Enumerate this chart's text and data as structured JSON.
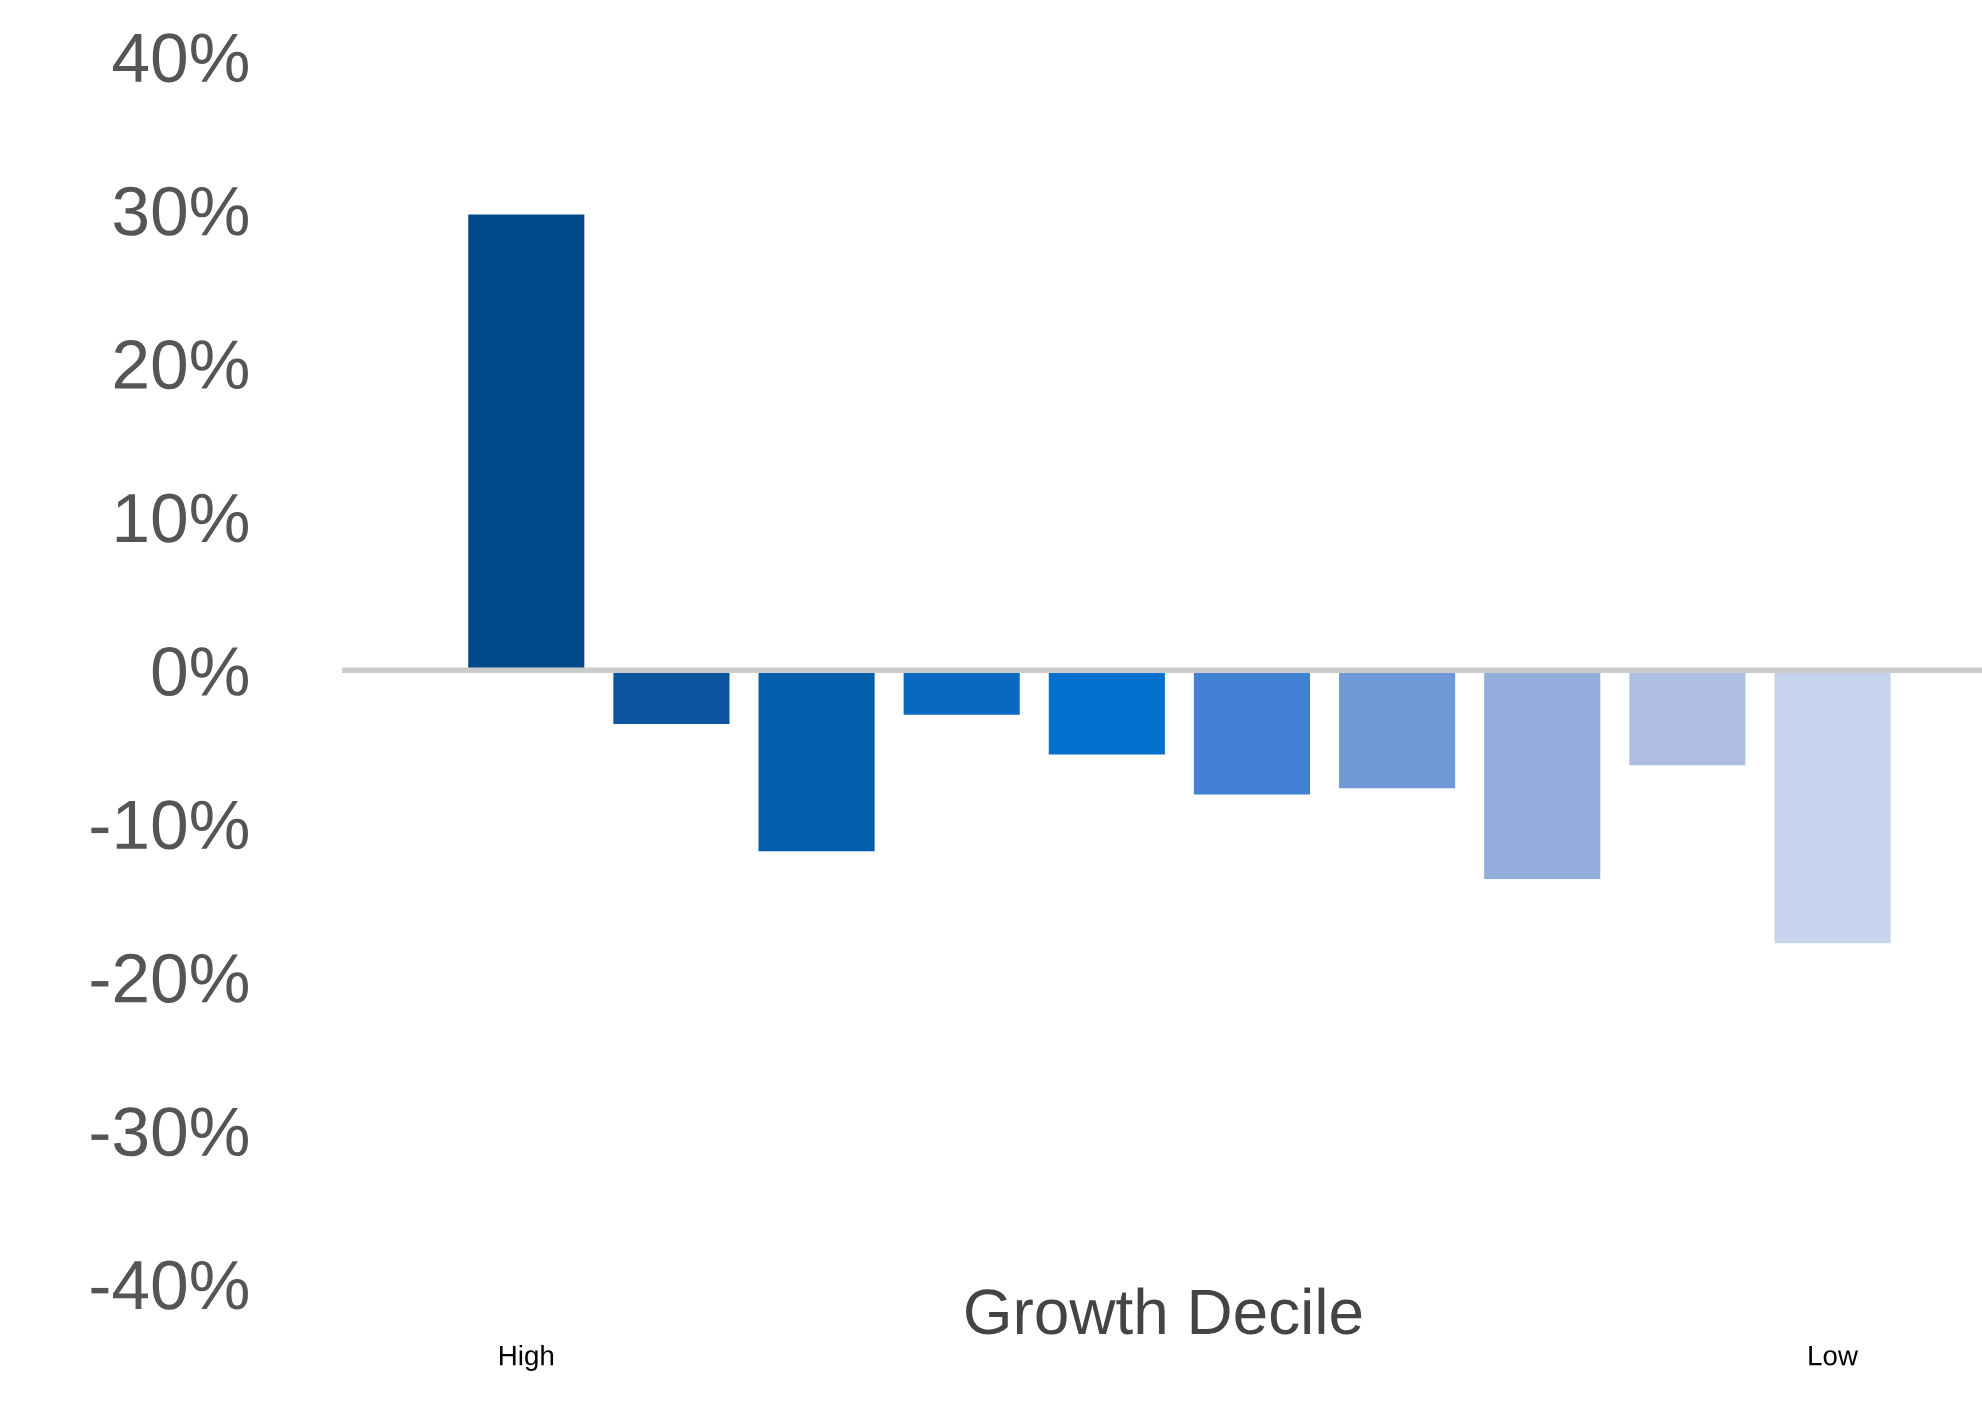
{
  "chart_data": {
    "type": "bar",
    "xlabel": "Growth Decile",
    "categories": [
      "High",
      null,
      null,
      null,
      null,
      null,
      null,
      null,
      null,
      "Low"
    ],
    "values": [
      29.7,
      -3.5,
      -11.8,
      -2.9,
      -5.5,
      -8.1,
      -7.7,
      -13.6,
      -6.2,
      -17.8
    ],
    "colors": [
      "#004a8a",
      "#0a559e",
      "#005eaa",
      "#0a68c0",
      "#0070cc",
      "#4180d2",
      "#6f98d6",
      "#93addd",
      "#afbfe3",
      "#c6d3ec"
    ],
    "ylim": [
      -40,
      40
    ],
    "yticks": [
      {
        "value": -40,
        "label": "-40%"
      },
      {
        "value": -30,
        "label": "-30%"
      },
      {
        "value": -20,
        "label": "-20%"
      },
      {
        "value": -10,
        "label": "-10%"
      },
      {
        "value": 0,
        "label": "0%"
      },
      {
        "value": 10,
        "label": "10%"
      },
      {
        "value": 20,
        "label": "20%"
      },
      {
        "value": 30,
        "label": "30%"
      },
      {
        "value": 40,
        "label": "40%"
      }
    ],
    "legend": false
  }
}
